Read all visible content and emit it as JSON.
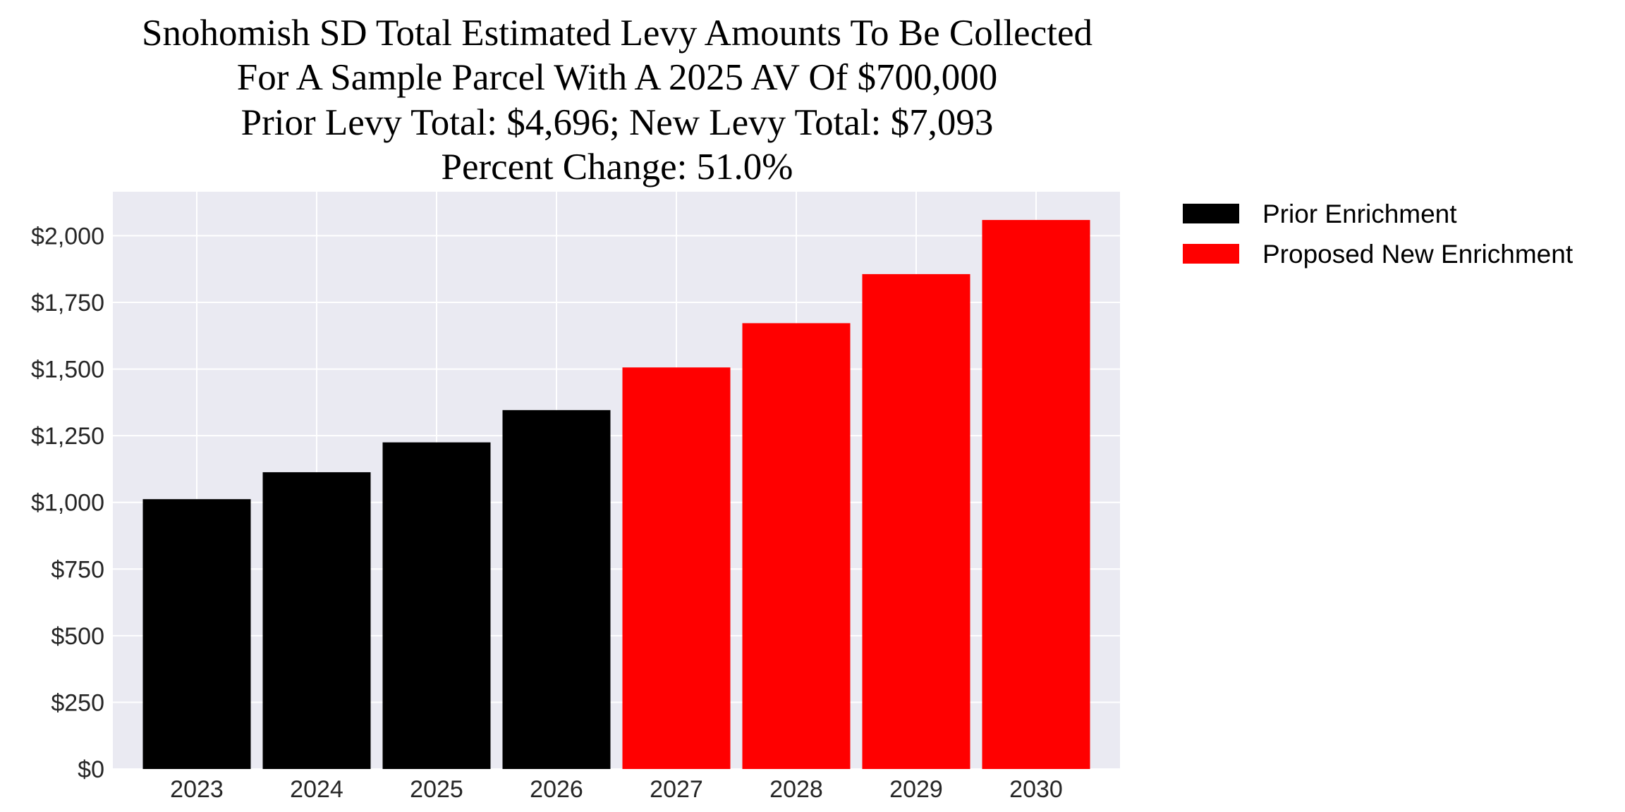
{
  "chart_data": {
    "type": "bar",
    "title_lines": [
      "Snohomish SD Total Estimated Levy Amounts To Be Collected",
      "For A Sample Parcel With A 2025 AV Of $700,000",
      "Prior Levy Total:  $4,696; New Levy Total: $7,093",
      "Percent Change: 51.0%"
    ],
    "categories": [
      "2023",
      "2024",
      "2025",
      "2026",
      "2027",
      "2028",
      "2029",
      "2030"
    ],
    "series": [
      {
        "name": "Prior Enrichment",
        "color": "#000000",
        "values": [
          1012,
          1113,
          1225,
          1346,
          null,
          null,
          null,
          null
        ]
      },
      {
        "name": "Proposed New Enrichment",
        "color": "#ff0000",
        "values": [
          null,
          null,
          null,
          null,
          1506,
          1672,
          1856,
          2059
        ]
      }
    ],
    "yticks": [
      0,
      250,
      500,
      750,
      1000,
      1250,
      1500,
      1750,
      2000
    ],
    "ytick_labels": [
      "$0",
      "$250",
      "$500",
      "$750",
      "$1,000",
      "$1,250",
      "$1,500",
      "$1,750",
      "$2,000"
    ],
    "ylim": [
      0,
      2165
    ],
    "xlabel": "",
    "ylabel": "",
    "grid": true,
    "background": "#eaeaf2",
    "legend_position": "outside-top-right"
  }
}
